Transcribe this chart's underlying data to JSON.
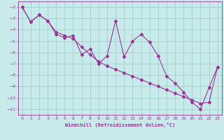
{
  "xlabel": "Windchill (Refroidissement éolien,°C)",
  "background_color": "#c8eaea",
  "grid_color": "#a0d0d0",
  "line_color": "#993399",
  "x_values": [
    0,
    1,
    2,
    3,
    4,
    5,
    6,
    7,
    8,
    9,
    10,
    11,
    12,
    13,
    14,
    15,
    16,
    17,
    18,
    19,
    20,
    21,
    22,
    23
  ],
  "series1": [
    -2.0,
    -3.3,
    -2.7,
    -3.2,
    -4.4,
    -4.7,
    -4.5,
    -6.2,
    -5.7,
    -7.0,
    -6.3,
    -3.2,
    -6.4,
    -5.0,
    -4.4,
    -5.1,
    -6.3,
    -8.1,
    -8.7,
    -9.5,
    -10.4,
    -11.0,
    -9.1,
    -7.3
  ],
  "series2": [
    -2.0,
    -3.3,
    -2.7,
    -3.2,
    -4.2,
    -4.5,
    -4.8,
    -5.5,
    -6.2,
    -6.8,
    -7.2,
    -7.5,
    -7.8,
    -8.1,
    -8.4,
    -8.7,
    -9.0,
    -9.3,
    -9.6,
    -9.9,
    -10.2,
    -10.5,
    -10.4,
    -7.3
  ],
  "ylim": [
    -11.5,
    -1.5
  ],
  "xlim": [
    -0.5,
    23.5
  ],
  "yticks": [
    -2,
    -3,
    -4,
    -5,
    -6,
    -7,
    -8,
    -9,
    -10,
    -11
  ],
  "xticks": [
    0,
    1,
    2,
    3,
    4,
    5,
    6,
    7,
    8,
    9,
    10,
    11,
    12,
    13,
    14,
    15,
    16,
    17,
    18,
    19,
    20,
    21,
    22,
    23
  ]
}
